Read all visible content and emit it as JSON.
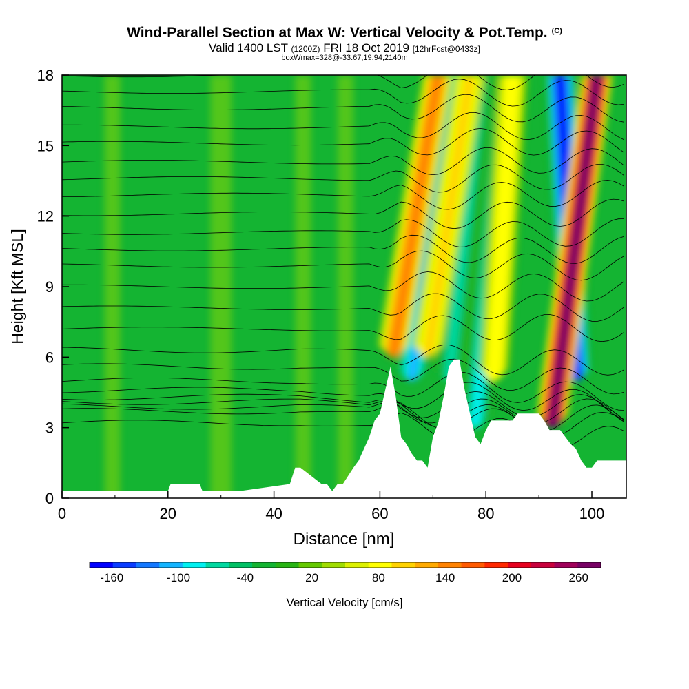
{
  "header": {
    "title": "Wind-Parallel Section at Max W: Vertical Velocity & Pot.Temp.",
    "copyright": "(C)",
    "valid_label": "Valid 1400 LST",
    "valid_z": "(1200Z)",
    "valid_date": "FRI 18 Oct 2019",
    "forecast_info": "[12hrFcst@0433z]",
    "box_info": "boxWmax=328@-33.67,19.94,2140m"
  },
  "chart_data": {
    "type": "heatmap",
    "xlabel": "Distance [nm]",
    "ylabel": "Height [Kft MSL]",
    "xlim": [
      0,
      106.5
    ],
    "ylim": [
      0,
      18
    ],
    "xticks": [
      0,
      20,
      40,
      60,
      80,
      100
    ],
    "yticks": [
      0,
      3,
      6,
      9,
      12,
      15,
      18
    ],
    "colorbar": {
      "label": "Vertical Velocity [cm/s]",
      "tick_labels": [
        "-160",
        "-100",
        "-40",
        "20",
        "80",
        "140",
        "200",
        "260"
      ],
      "tick_values": [
        -160,
        -100,
        -40,
        20,
        80,
        140,
        200,
        260
      ],
      "min": -180,
      "max": 280,
      "colors": [
        "#0000ff",
        "#0a3cff",
        "#1478ff",
        "#14b4ff",
        "#00f0f0",
        "#00d8a0",
        "#00c064",
        "#14b432",
        "#28b414",
        "#64c800",
        "#a0dc00",
        "#dcf000",
        "#ffff00",
        "#ffd200",
        "#ffaa00",
        "#ff8200",
        "#ff5a00",
        "#ff2800",
        "#e6001e",
        "#c8003c",
        "#a0005a",
        "#780064"
      ]
    },
    "background_w": 10,
    "updraft_columns": [
      {
        "x_base": 62.5,
        "x_top": 71,
        "base_kft": 6,
        "top_kft": 18,
        "peak_w": 150
      },
      {
        "x_base": 69,
        "x_top": 77,
        "base_kft": 6,
        "top_kft": 18,
        "peak_w": 110
      },
      {
        "x_base": 81.5,
        "x_top": 85,
        "base_kft": 5,
        "top_kft": 18,
        "peak_w": 90
      },
      {
        "x_base": 92.5,
        "x_top": 101,
        "base_kft": 3,
        "top_kft": 18,
        "peak_w": 270
      }
    ],
    "downdraft_columns": [
      {
        "x_base": 66,
        "x_top": 73,
        "base_kft": 5,
        "top_kft": 18,
        "peak_w": -110
      },
      {
        "x_base": 73,
        "x_top": 79,
        "base_kft": 5,
        "top_kft": 18,
        "peak_w": -60
      },
      {
        "x_base": 78,
        "x_top": 84,
        "base_kft": 3,
        "top_kft": 18,
        "peak_w": -80
      },
      {
        "x_base": 97,
        "x_top": 94,
        "base_kft": 5,
        "top_kft": 18,
        "peak_w": -170
      }
    ],
    "terrain": {
      "x": [
        0,
        5,
        10,
        20,
        20.5,
        26,
        26.5,
        33,
        33.5,
        43,
        44,
        45,
        49,
        50,
        51,
        52,
        53,
        55,
        56,
        58,
        59,
        60,
        61,
        62,
        63,
        64,
        65,
        66,
        67,
        68,
        69,
        70,
        71,
        72,
        73,
        74,
        75,
        76,
        77,
        78,
        79,
        80,
        81,
        82,
        83,
        84,
        85,
        86,
        87,
        88,
        89,
        90,
        91,
        92,
        93,
        94,
        95,
        96,
        97,
        98,
        99,
        100,
        101,
        102,
        103,
        104,
        105,
        106.5
      ],
      "kft": [
        0.3,
        0.3,
        0.3,
        0.3,
        0.6,
        0.6,
        0.3,
        0.3,
        0.3,
        0.6,
        1.3,
        1.3,
        0.6,
        0.6,
        0.3,
        0.6,
        0.6,
        1.3,
        1.6,
        2.6,
        3.3,
        3.6,
        4.6,
        5.6,
        4.3,
        2.6,
        2.3,
        1.9,
        1.6,
        1.6,
        1.3,
        2.6,
        3.2,
        4.3,
        5.6,
        5.9,
        5.9,
        4.6,
        3.6,
        2.6,
        2.3,
        2.9,
        3.3,
        3.3,
        3.3,
        3.3,
        3.3,
        3.6,
        3.6,
        3.6,
        3.6,
        3.6,
        3.3,
        2.9,
        2.9,
        2.9,
        2.6,
        2.3,
        2.1,
        1.6,
        1.3,
        1.3,
        1.6,
        1.6,
        1.6,
        1.6,
        1.6,
        1.6
      ]
    },
    "isentropes_kft": [
      3.2,
      3.7,
      3.9,
      4.1,
      4.3,
      4.6,
      5.0,
      5.6,
      6.3,
      7.2,
      8.1,
      9.0,
      9.9,
      10.6,
      11.3,
      12.1,
      12.9,
      13.6,
      14.3,
      15.1,
      15.8,
      16.6,
      17.3,
      18.0
    ]
  }
}
